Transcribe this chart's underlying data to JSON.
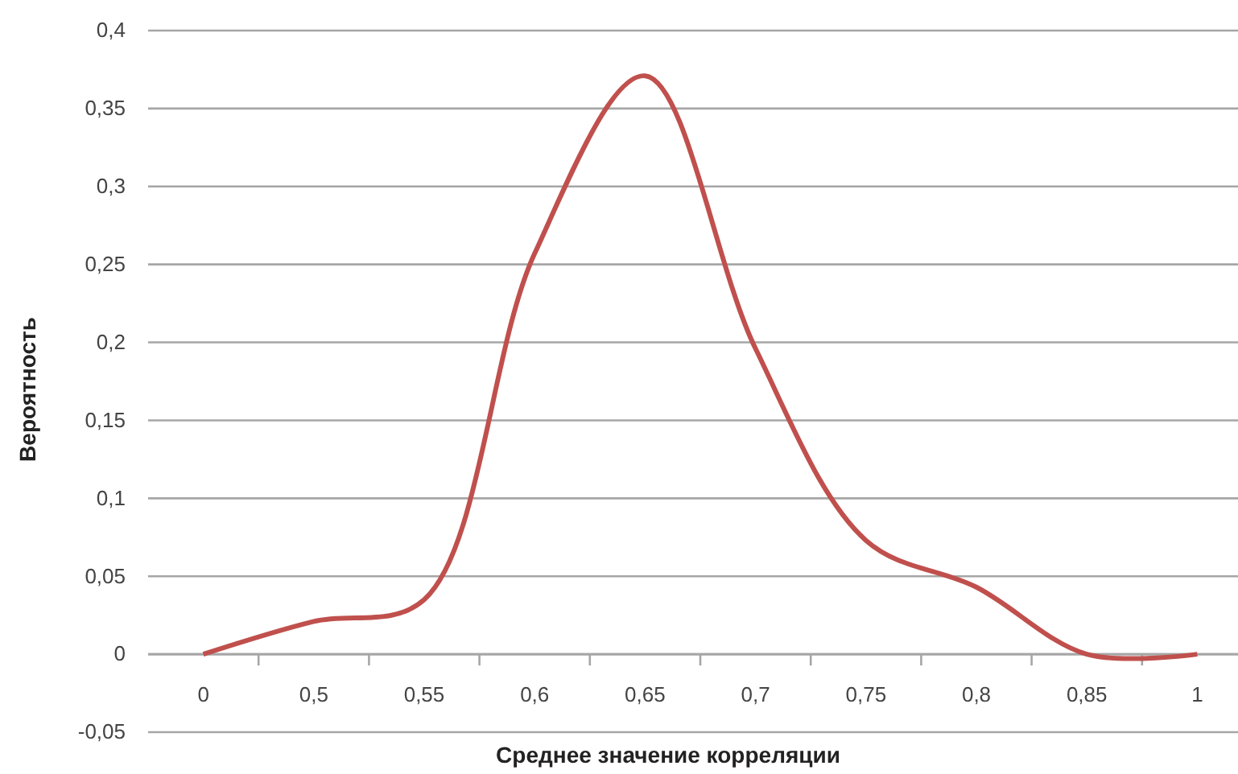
{
  "chart_data": {
    "type": "line",
    "xlabel": "Среднее значение корреляции",
    "ylabel": "Вероятность",
    "categories": [
      "0",
      "0,5",
      "0,55",
      "0,6",
      "0,65",
      "0,7",
      "0,75",
      "0,8",
      "0,85",
      "1"
    ],
    "series": [
      {
        "color": "#c0504d",
        "values": [
          0,
          0.021,
          0.035,
          0.257,
          0.371,
          0.196,
          0.073,
          0.043,
          0,
          0
        ]
      }
    ],
    "ylim": [
      -0.05,
      0.4
    ],
    "yticks": [
      {
        "value": -0.05,
        "label": "-0,05"
      },
      0,
      {
        "value": 0.05,
        "label": "0,05"
      },
      {
        "value": 0.1,
        "label": "0,1"
      },
      {
        "value": 0.15,
        "label": "0,15"
      },
      {
        "value": 0.2,
        "label": "0,2"
      },
      {
        "value": 0.25,
        "label": "0,25"
      },
      {
        "value": 0.3,
        "label": "0,3"
      },
      {
        "value": 0.35,
        "label": "0,35"
      },
      {
        "value": 0.4,
        "label": "0,4"
      }
    ],
    "grid": "y",
    "marker": "none",
    "line_style": "solid"
  }
}
